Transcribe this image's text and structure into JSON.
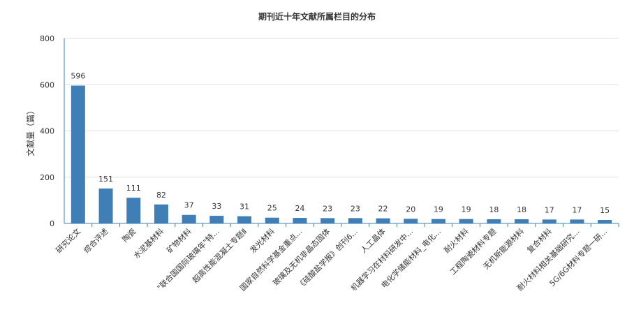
{
  "chart_data": {
    "type": "bar",
    "title": "期刊近十年文献所属栏目的分布",
    "ylabel": "文献量（篇）",
    "xlabel": "",
    "ylim": [
      0,
      800
    ],
    "yticks": [
      0,
      200,
      400,
      600,
      800
    ],
    "grid": true,
    "bar_color": "#3f7fb5",
    "categories": [
      "研究论文",
      "综合评述",
      "陶瓷",
      "水泥基材料",
      "矿物材料",
      "\"联合国国际玻璃年\"特...",
      "超高性能混凝土专题Ⅱ",
      "发光材料",
      "国家自然科学基金重点...",
      "玻璃及无机非晶态固体",
      "《硅酸盐学报》创刊6...",
      "人工晶体",
      "机器学习在材料研发中...",
      "电化学储能材料_电化...",
      "耐火材料",
      "工程陶瓷材料专题",
      "无机新能源材料",
      "复合材料",
      "耐火材料相关基础研究...",
      "5G/6G材料专题一研..."
    ],
    "values": [
      596,
      151,
      111,
      82,
      37,
      33,
      31,
      25,
      24,
      23,
      23,
      22,
      20,
      19,
      19,
      18,
      18,
      17,
      17,
      15
    ]
  }
}
